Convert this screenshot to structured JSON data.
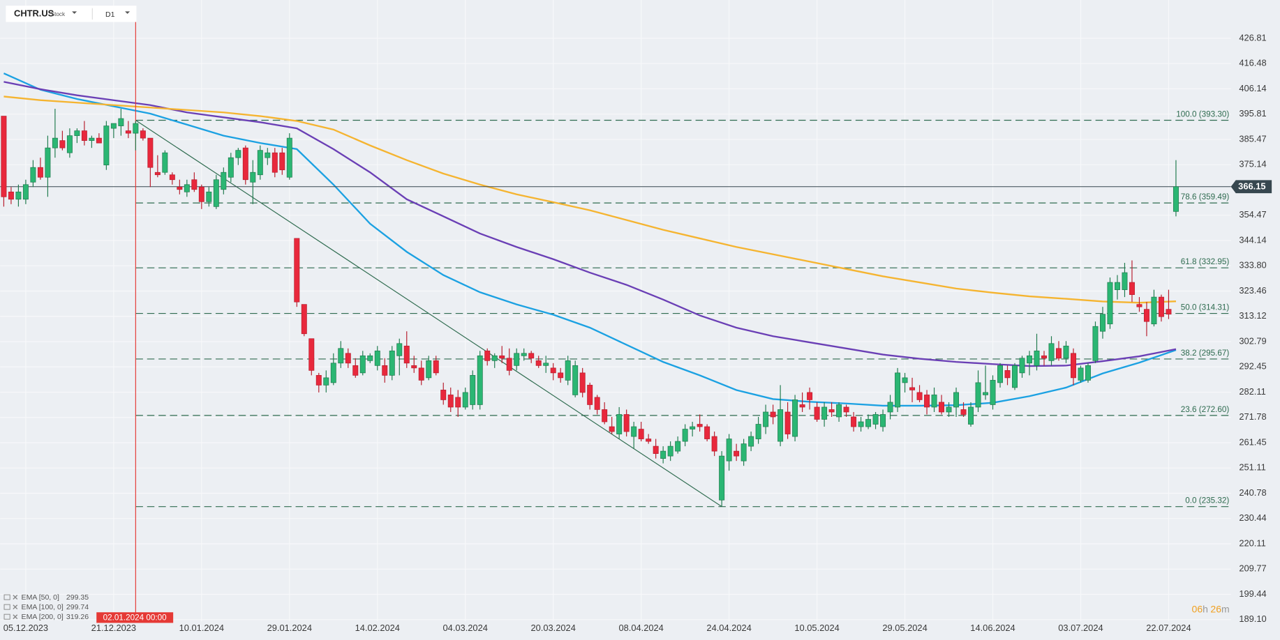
{
  "header": {
    "symbol": "CHTR.US",
    "asset_type": "Stock",
    "timeframe": "D1"
  },
  "chart_data": {
    "type": "candlestick",
    "up_color": "#2bb673",
    "down_color": "#e8283c",
    "open": [
      395,
      364,
      361,
      361,
      368,
      374,
      370,
      382,
      385,
      380,
      387,
      389,
      385,
      386,
      375,
      390,
      391,
      389,
      388,
      389,
      386,
      372,
      372,
      371,
      366,
      364,
      369,
      366,
      360,
      358,
      365,
      370,
      378,
      382,
      368,
      371,
      378,
      380,
      380,
      370,
      345,
      318,
      304,
      289,
      285,
      286,
      294,
      298,
      293,
      290,
      295,
      293,
      293,
      289,
      297,
      301,
      293,
      292,
      288,
      295,
      283,
      281,
      280,
      276,
      277,
      277,
      299,
      295,
      297,
      296,
      293,
      297,
      298,
      295,
      293,
      292,
      290,
      287,
      281,
      290,
      285,
      280,
      275,
      268,
      265,
      273,
      264,
      267,
      263,
      260,
      255,
      256,
      258,
      262,
      267,
      269,
      268,
      264,
      238,
      254,
      258,
      254,
      260,
      263,
      268,
      274,
      262,
      274,
      264,
      277,
      282,
      276,
      271,
      275,
      272,
      276,
      272,
      268,
      268,
      269,
      268,
      274,
      276,
      286,
      284,
      282,
      281,
      276,
      278,
      274,
      276,
      275,
      269,
      276,
      281,
      277,
      286,
      291,
      284,
      290,
      294,
      293,
      297,
      295,
      300,
      296,
      298,
      287,
      287,
      295,
      307,
      310,
      324,
      324,
      327,
      318,
      316,
      310,
      321,
      316,
      356
    ],
    "high": [
      395,
      366,
      367,
      369,
      377,
      378,
      387,
      398,
      389,
      390,
      390,
      393,
      387,
      388,
      393,
      392,
      398,
      393,
      393,
      390,
      386,
      379,
      381,
      372,
      369,
      369,
      372,
      367,
      366,
      371,
      374,
      380,
      382,
      383,
      377,
      383,
      382,
      382,
      382,
      388,
      345,
      318,
      304,
      290,
      291,
      298,
      303,
      300,
      296,
      299,
      298,
      301,
      296,
      301,
      304,
      307,
      297,
      295,
      297,
      297,
      286,
      284,
      283,
      284,
      291,
      299,
      300,
      298,
      301,
      300,
      300,
      300,
      299,
      297,
      297,
      294,
      292,
      297,
      295,
      292,
      286,
      281,
      278,
      272,
      276,
      275,
      270,
      270,
      265,
      263,
      260,
      262,
      264,
      269,
      270,
      273,
      269,
      266,
      258,
      265,
      261,
      263,
      266,
      272,
      277,
      277,
      285,
      278,
      281,
      282,
      284,
      278,
      278,
      278,
      278,
      277,
      274,
      272,
      273,
      274,
      275,
      281,
      292,
      290,
      288,
      285,
      283,
      284,
      281,
      278,
      284,
      278,
      278,
      291,
      293,
      289,
      294,
      293,
      294,
      297,
      299,
      306,
      299,
      305,
      303,
      303,
      300,
      293,
      294,
      311,
      317,
      329,
      330,
      335,
      336,
      321,
      319,
      324,
      322,
      324,
      377
    ],
    "low": [
      358,
      359,
      358,
      359,
      366,
      369,
      362,
      378,
      381,
      378,
      384,
      383,
      382,
      384,
      373,
      386,
      387,
      386,
      381,
      385,
      366,
      370,
      371,
      367,
      363,
      362,
      364,
      357,
      358,
      357,
      363,
      368,
      375,
      367,
      359,
      369,
      375,
      370,
      371,
      369,
      317,
      305,
      289,
      282,
      282,
      285,
      292,
      292,
      288,
      289,
      294,
      291,
      286,
      287,
      289,
      292,
      290,
      285,
      287,
      289,
      277,
      274,
      272,
      275,
      275,
      275,
      293,
      292,
      294,
      289,
      291,
      295,
      294,
      292,
      290,
      287,
      286,
      285,
      280,
      280,
      275,
      273,
      269,
      265,
      263,
      264,
      259,
      262,
      261,
      255,
      253,
      254,
      257,
      260,
      264,
      266,
      262,
      256,
      235.32,
      250,
      254,
      252,
      258,
      261,
      265,
      269,
      260,
      263,
      262,
      274,
      275,
      270,
      268,
      272,
      270,
      272,
      266,
      266,
      267,
      267,
      266,
      271,
      274,
      282,
      278,
      278,
      273,
      274,
      273,
      272,
      272,
      272,
      268,
      274,
      279,
      275,
      284,
      285,
      283,
      288,
      289,
      291,
      293,
      293,
      295,
      294,
      285,
      286,
      286,
      294,
      304,
      308,
      320,
      321,
      319,
      315,
      305,
      309,
      311,
      312,
      354
    ],
    "close": [
      362,
      361,
      364,
      367,
      374,
      370,
      382,
      386,
      382,
      387,
      389,
      385,
      386,
      384,
      391,
      392,
      394,
      388,
      392,
      386,
      374,
      371,
      380,
      369,
      365,
      367,
      365,
      360,
      364,
      369,
      372,
      378,
      381,
      369,
      372,
      381,
      380,
      372,
      373,
      386,
      319,
      306,
      291,
      285,
      288,
      294,
      300,
      294,
      289,
      297,
      297,
      299,
      289,
      299,
      302,
      294,
      292,
      287,
      295,
      290,
      279,
      276,
      276,
      282,
      289,
      297,
      295,
      297,
      296,
      291,
      298,
      298,
      296,
      293,
      294,
      290,
      288,
      295,
      293,
      282,
      277,
      275,
      270,
      266,
      273,
      266,
      268,
      263,
      262,
      257,
      258,
      260,
      262,
      267,
      268,
      268,
      263,
      258,
      256,
      263,
      256,
      261,
      264,
      269,
      274,
      272,
      275,
      265,
      279,
      276,
      279,
      271,
      276,
      274,
      277,
      274,
      268,
      270,
      271,
      273,
      273,
      278,
      290,
      288,
      283,
      279,
      276,
      281,
      274,
      276,
      282,
      273,
      276,
      286,
      282,
      287,
      293,
      288,
      293,
      296,
      297,
      299,
      296,
      302,
      296,
      301,
      288,
      292,
      293,
      309,
      314,
      327,
      327,
      331,
      322,
      317,
      311,
      321,
      313,
      314,
      366.15
    ],
    "xlim": [
      -0.5,
      167.5
    ],
    "xticks": [
      {
        "value": 3,
        "label": "05.12.2023"
      },
      {
        "value": 15,
        "label": "21.12.2023"
      },
      {
        "value": 27,
        "label": "10.01.2024"
      },
      {
        "value": 39,
        "label": "29.01.2024"
      },
      {
        "value": 51,
        "label": "14.02.2024"
      },
      {
        "value": 63,
        "label": "04.03.2024"
      },
      {
        "value": 75,
        "label": "20.03.2024"
      },
      {
        "value": 87,
        "label": "08.04.2024"
      },
      {
        "value": 99,
        "label": "24.04.2024"
      },
      {
        "value": 111,
        "label": "10.05.2024"
      },
      {
        "value": 123,
        "label": "29.05.2024"
      },
      {
        "value": 135,
        "label": "14.06.2024"
      },
      {
        "value": 147,
        "label": "03.07.2024"
      },
      {
        "value": 159,
        "label": "22.07.2024"
      }
    ],
    "ylim": [
      188.44,
      442.48
    ],
    "yticks": [
      426.81,
      416.48,
      406.14,
      395.81,
      385.47,
      375.14,
      354.47,
      344.14,
      {
        "value": 333.8,
        "label": "333.80"
      },
      323.46,
      313.12,
      302.79,
      292.45,
      282.11,
      271.78,
      261.45,
      251.11,
      240.78,
      230.44,
      220.11,
      209.77,
      199.44,
      {
        "value": 189.1,
        "label": "189.10"
      }
    ],
    "grid": true,
    "last_price": 366.15,
    "crosshair": {
      "x": 18,
      "label": "02.01.2024 00:00"
    },
    "fibonacci": [
      {
        "value": 393.3,
        "label": "100.0 (393.30)"
      },
      {
        "value": 359.49,
        "label": "78.6 (359.49)"
      },
      {
        "value": 332.95,
        "label": "61.8 (332.95)"
      },
      {
        "value": 314.31,
        "label": "50.0 (314.31)"
      },
      {
        "value": 295.67,
        "label": "38.2 (295.67)"
      },
      {
        "value": 272.6,
        "label": "23.6 (272.60)"
      },
      {
        "value": 235.32,
        "label": "0.0 (235.32)"
      }
    ],
    "trendline": {
      "x": [
        18,
        98
      ],
      "y": [
        393.3,
        235.32
      ]
    },
    "indicators": [
      {
        "name": "EMA [50, 0]",
        "color": "#1ba1e2",
        "x": [
          0,
          5,
          10,
          15,
          20,
          25,
          30,
          35,
          40,
          45,
          50,
          55,
          60,
          65,
          70,
          75,
          80,
          85,
          90,
          95,
          100,
          105,
          110,
          115,
          120,
          125,
          130,
          135,
          140,
          145,
          150,
          155,
          160
        ],
        "values": [
          412.5,
          405.8,
          402,
          399,
          396,
          391.5,
          387,
          384,
          381.5,
          367,
          351,
          339.5,
          330,
          323,
          318,
          313.8,
          308.5,
          301.5,
          294.5,
          289,
          283,
          279.3,
          278.2,
          277.5,
          276.6,
          276.6,
          276.8,
          277.8,
          280.5,
          284,
          289.8,
          294.2,
          299.35
        ]
      },
      {
        "name": "EMA [100, 0]",
        "color": "#6a3fb5",
        "x": [
          0,
          5,
          10,
          15,
          20,
          25,
          30,
          35,
          40,
          45,
          50,
          55,
          60,
          65,
          70,
          75,
          80,
          85,
          90,
          95,
          100,
          105,
          110,
          115,
          120,
          125,
          130,
          135,
          140,
          145,
          150,
          155,
          160
        ],
        "values": [
          409,
          406,
          403.5,
          401.5,
          399.5,
          396.5,
          394.5,
          392.5,
          390,
          381.5,
          372,
          361,
          354,
          347,
          341.5,
          336.5,
          331,
          326,
          320,
          313.5,
          308.5,
          305,
          302.5,
          300,
          297.5,
          295.8,
          294.5,
          293.6,
          292.8,
          293,
          294.8,
          296.8,
          299.74
        ]
      },
      {
        "name": "EMA [200, 0]",
        "color": "#f5b430",
        "x": [
          0,
          5,
          10,
          15,
          20,
          25,
          30,
          35,
          40,
          45,
          50,
          55,
          60,
          65,
          70,
          75,
          80,
          85,
          90,
          95,
          100,
          105,
          110,
          115,
          120,
          125,
          130,
          135,
          140,
          145,
          150,
          155,
          160
        ],
        "values": [
          403,
          401.5,
          400.5,
          399.5,
          398.5,
          397.5,
          396.5,
          395,
          393,
          389.5,
          383,
          377,
          371.5,
          367,
          363,
          359.8,
          356.5,
          352.5,
          348.5,
          345,
          341.5,
          338.5,
          335.5,
          332.5,
          329.5,
          327,
          324.5,
          322.8,
          321.3,
          320.3,
          319.2,
          318.7,
          319.26
        ]
      }
    ],
    "countdown": {
      "hours": "06",
      "hours_unit": "h",
      "minutes": "26",
      "minutes_unit": "m"
    }
  }
}
